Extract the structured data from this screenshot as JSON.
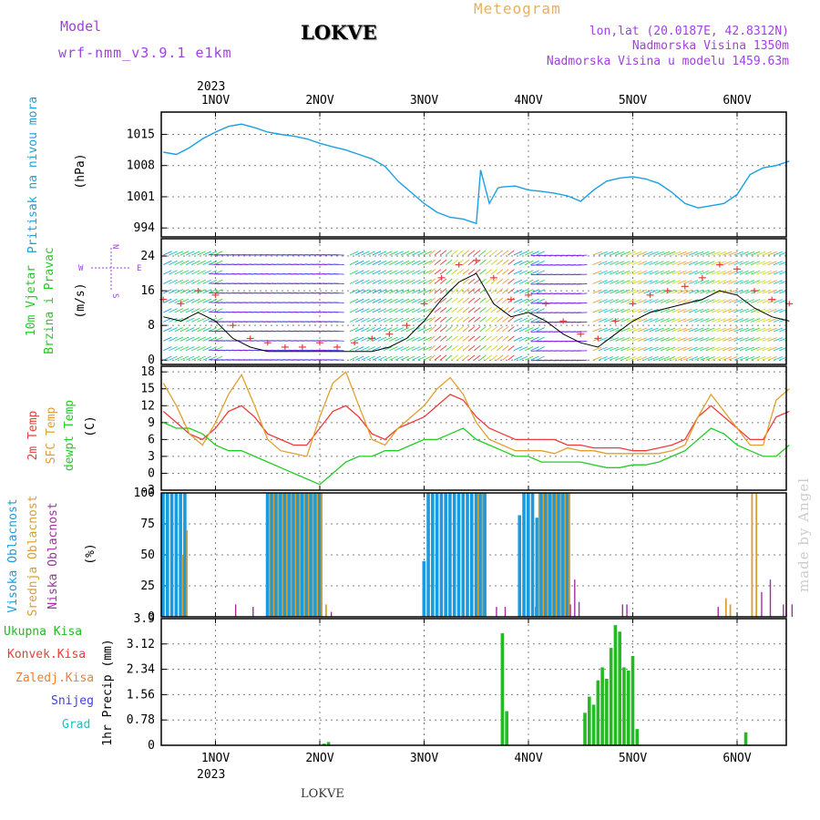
{
  "header": {
    "model_label": "Model",
    "model_name": "wrf-nmm_v3.9.1 e1km",
    "station_title": "LOKVE",
    "meteogram_label": "Meteogram",
    "lonlat": "lon,lat (20.0187E, 42.8312N)",
    "altitude": "Nadmorska Visina 1350m",
    "model_altitude": "Nadmorska Visina u modelu 1459.63m"
  },
  "footer": {
    "station": "LOKVE",
    "credit": "made by Angel"
  },
  "colors": {
    "pressure": "#1aa0e0",
    "temp2m": "#ee3a3a",
    "sfc": "#e0a030",
    "dewpt": "#22cc22",
    "high_cloud": "#1a9be0",
    "mid_cloud": "#d9a030",
    "low_cloud": "#a030a0",
    "total_precip": "#22bb22",
    "conv": "#ee3a3a",
    "frozen": "#f08030",
    "snow": "#4040e0",
    "hail": "#20c0c0",
    "title_purple": "#a040e0",
    "meteogram_orange": "#e6b060"
  },
  "chart_data": [
    {
      "type": "line",
      "name": "pressure",
      "ylabel_lines": [
        "Pritisak na nivou mora",
        "(hPa)"
      ],
      "yticks": [
        994,
        1001,
        1008,
        1015
      ],
      "ylim": [
        992,
        1020
      ],
      "xticks": [
        "1NOV",
        "2NOV",
        "3NOV",
        "4NOV",
        "5NOV",
        "6NOV"
      ],
      "top_year": "2023",
      "x": [
        0,
        3,
        6,
        9,
        12,
        15,
        18,
        21,
        24,
        27,
        30,
        33,
        36,
        39,
        42,
        45,
        48,
        51,
        54,
        57,
        60,
        63,
        66,
        69,
        72,
        73,
        75,
        77,
        78,
        81,
        84,
        87,
        90,
        93,
        96,
        99,
        102,
        105,
        108,
        111,
        114,
        117,
        120,
        123,
        126,
        129,
        132,
        135,
        138,
        141,
        144
      ],
      "series": [
        {
          "values": [
            1011,
            1010.5,
            1012,
            1014,
            1015.5,
            1016.8,
            1017.3,
            1016.5,
            1015.5,
            1015,
            1014.6,
            1014,
            1013,
            1012.2,
            1011.5,
            1010.5,
            1009.5,
            1007.8,
            1004.5,
            1002,
            999.5,
            997.5,
            996.4,
            996,
            995,
            1007,
            999.5,
            1003,
            1003.2,
            1003.4,
            1002.5,
            1002.2,
            1001.8,
            1001.2,
            1000,
            1002.5,
            1004.5,
            1005.2,
            1005.5,
            1005,
            1004,
            1002,
            999.5,
            998.5,
            999,
            999.5,
            1001.5,
            1006,
            1007.5,
            1008,
            1009
          ]
        }
      ]
    },
    {
      "type": "line",
      "name": "wind",
      "ylabel_lines": [
        "10m Vjetar",
        "Brzina i Pravac",
        "(m/s)"
      ],
      "compass": {
        "w": "W",
        "e": "E",
        "n": "N",
        "s": "S"
      },
      "yticks": [
        0,
        8,
        16,
        24
      ],
      "ylim": [
        -1,
        28
      ],
      "x": [
        0,
        4,
        8,
        12,
        16,
        20,
        24,
        28,
        32,
        36,
        40,
        44,
        48,
        52,
        56,
        60,
        64,
        68,
        72,
        76,
        80,
        84,
        88,
        92,
        96,
        100,
        104,
        108,
        112,
        116,
        120,
        124,
        128,
        132,
        136,
        140,
        144
      ],
      "series": [
        {
          "name": "wind",
          "values": [
            10,
            9,
            11,
            9,
            5,
            3,
            2,
            2,
            2,
            2,
            2,
            2,
            2,
            3,
            5,
            9,
            14,
            18,
            20,
            13,
            10,
            11,
            9,
            6,
            4,
            3,
            6,
            9,
            11,
            12,
            13,
            14,
            16,
            15,
            12,
            10,
            9
          ]
        },
        {
          "name": "gust",
          "values": [
            14,
            13,
            16,
            15,
            8,
            5,
            4,
            3,
            3,
            4,
            3,
            4,
            5,
            6,
            8,
            13,
            19,
            22,
            23,
            19,
            14,
            15,
            13,
            9,
            6,
            5,
            9,
            13,
            15,
            16,
            17,
            19,
            22,
            21,
            16,
            14,
            13
          ]
        }
      ]
    },
    {
      "type": "line",
      "name": "temperature",
      "ylabel_lines": [
        "2m Temp",
        "SFC Temp",
        "dewpt Temp",
        "(C)"
      ],
      "yticks": [
        -3,
        0,
        3,
        6,
        9,
        12,
        15,
        18
      ],
      "ylim": [
        -3,
        19
      ],
      "x": [
        0,
        3,
        6,
        9,
        12,
        15,
        18,
        21,
        24,
        27,
        30,
        33,
        36,
        39,
        42,
        45,
        48,
        51,
        54,
        57,
        60,
        63,
        66,
        69,
        72,
        75,
        78,
        81,
        84,
        87,
        90,
        93,
        96,
        99,
        102,
        105,
        108,
        111,
        114,
        117,
        120,
        123,
        126,
        129,
        132,
        135,
        138,
        141,
        144
      ],
      "series": [
        {
          "name": "2m Temp",
          "values": [
            11,
            9,
            7,
            6,
            8,
            11,
            12,
            10,
            7,
            6,
            5,
            5,
            8,
            11,
            12,
            10,
            7,
            6,
            8,
            9,
            10,
            12,
            14,
            13,
            10,
            8,
            7,
            6,
            6,
            6,
            6,
            5,
            5,
            4.5,
            4.5,
            4.5,
            4,
            4,
            4.5,
            5,
            6,
            10,
            12,
            10,
            8,
            6,
            6,
            10,
            11
          ]
        },
        {
          "name": "SFC Temp",
          "values": [
            16,
            12,
            7,
            5,
            9,
            14,
            17.5,
            12,
            6,
            4,
            3.5,
            3,
            10,
            16,
            18,
            12,
            6,
            5,
            8,
            10,
            12,
            15,
            17,
            14,
            9,
            6,
            5,
            4,
            4,
            4,
            3.5,
            4.5,
            4,
            4,
            3.5,
            3.5,
            3.5,
            3.5,
            3.5,
            4,
            5,
            10,
            14,
            11,
            8,
            5,
            5,
            13,
            15
          ]
        },
        {
          "name": "dewpt Temp",
          "values": [
            9,
            8,
            8,
            7,
            5,
            4,
            4,
            3,
            2,
            1,
            0,
            -1,
            -2,
            0,
            2,
            3,
            3,
            4,
            4,
            5,
            6,
            6,
            7,
            8,
            6,
            5,
            4,
            3,
            3,
            2,
            2,
            2,
            2,
            1.5,
            1,
            1,
            1.5,
            1.5,
            2,
            3,
            4,
            6,
            8,
            7,
            5,
            4,
            3,
            3,
            5
          ]
        }
      ]
    },
    {
      "type": "bar",
      "name": "cloud_cover",
      "ylabel_lines": [
        "Visoka Oblacnost",
        "Srednja Oblacnost",
        "Niska Oblacnost",
        "(%)"
      ],
      "yticks": [
        0,
        25,
        50,
        75,
        100
      ],
      "ylim": [
        0,
        100
      ],
      "x": [
        0,
        1,
        2,
        3,
        4,
        5,
        6,
        7,
        8,
        9,
        10,
        11,
        12,
        13,
        14,
        15,
        16,
        17,
        18,
        19,
        20,
        21,
        22,
        23,
        24,
        25,
        26,
        27,
        28,
        29,
        30,
        31,
        32,
        33,
        34,
        35,
        36,
        37,
        38,
        39,
        40,
        41,
        42,
        43,
        44,
        45,
        46,
        47,
        48,
        49,
        50,
        51,
        52,
        53,
        54,
        55,
        56,
        57,
        58,
        59,
        60,
        61,
        62,
        63,
        64,
        65,
        66,
        67,
        68,
        69,
        70,
        71,
        72,
        73,
        74,
        75,
        76,
        77,
        78,
        79,
        80,
        81,
        82,
        83,
        84,
        85,
        86,
        87,
        88,
        89,
        90,
        91,
        92,
        93,
        94,
        95,
        96,
        97,
        98,
        99,
        100,
        101,
        102,
        103,
        104,
        105,
        106,
        107,
        108,
        109,
        110,
        111,
        112,
        113,
        114,
        115,
        116,
        117,
        118,
        119,
        120,
        121,
        122,
        123,
        124,
        125,
        126,
        127,
        128,
        129,
        130,
        131,
        132,
        133,
        134,
        135,
        136,
        137,
        138,
        139,
        140,
        141,
        142,
        143,
        144
      ],
      "series": [
        {
          "name": "Visoka Oblacnost",
          "values": [
            100,
            100,
            100,
            100,
            100,
            100,
            0,
            0,
            0,
            0,
            0,
            0,
            0,
            0,
            0,
            0,
            0,
            0,
            0,
            0,
            0,
            0,
            0,
            0,
            100,
            100,
            100,
            100,
            100,
            100,
            100,
            100,
            100,
            100,
            100,
            100,
            100,
            0,
            0,
            0,
            0,
            0,
            0,
            0,
            0,
            0,
            0,
            0,
            0,
            0,
            0,
            0,
            0,
            0,
            0,
            0,
            0,
            0,
            0,
            0,
            45,
            100,
            100,
            100,
            100,
            100,
            100,
            100,
            100,
            100,
            100,
            100,
            100,
            100,
            100,
            0,
            0,
            0,
            0,
            0,
            0,
            0,
            82,
            100,
            100,
            100,
            80,
            100,
            100,
            100,
            100,
            100,
            100,
            100,
            0,
            0,
            0,
            0,
            0,
            0,
            0,
            0,
            0,
            0,
            0,
            0,
            0,
            0,
            0,
            0,
            0,
            0,
            0,
            0,
            0,
            0,
            0,
            0,
            0,
            0,
            0,
            0,
            0,
            0,
            0,
            0,
            0,
            0,
            0,
            0,
            0,
            0,
            0,
            0,
            0,
            0,
            0,
            0,
            0,
            0,
            0,
            0,
            0,
            0,
            0
          ]
        },
        {
          "name": "Srednja Oblacnost",
          "values": [
            0,
            0,
            0,
            0,
            50,
            70,
            0,
            0,
            0,
            0,
            0,
            0,
            0,
            0,
            0,
            0,
            0,
            0,
            0,
            0,
            0,
            0,
            0,
            0,
            100,
            100,
            100,
            100,
            100,
            100,
            100,
            100,
            100,
            100,
            100,
            100,
            100,
            10,
            0,
            0,
            0,
            0,
            0,
            0,
            0,
            0,
            0,
            0,
            0,
            0,
            0,
            0,
            0,
            0,
            0,
            0,
            0,
            0,
            0,
            0,
            0,
            0,
            0,
            0,
            0,
            0,
            0,
            0,
            0,
            0,
            0,
            0,
            100,
            100,
            0,
            0,
            0,
            0,
            0,
            0,
            0,
            0,
            0,
            0,
            0,
            0,
            100,
            100,
            100,
            100,
            100,
            100,
            100,
            100,
            0,
            0,
            0,
            0,
            0,
            0,
            0,
            0,
            0,
            0,
            0,
            0,
            0,
            0,
            0,
            0,
            0,
            0,
            0,
            0,
            0,
            0,
            0,
            0,
            0,
            0,
            0,
            0,
            0,
            0,
            0,
            0,
            0,
            0,
            0,
            15,
            10,
            0,
            0,
            0,
            0,
            100,
            100,
            0,
            0,
            0,
            0,
            0,
            0,
            0,
            0
          ]
        },
        {
          "name": "Niska Oblacnost",
          "values": [
            0,
            0,
            0,
            0,
            0,
            0,
            0,
            0,
            0,
            0,
            0,
            0,
            0,
            0,
            0,
            0,
            10,
            0,
            0,
            0,
            8,
            0,
            0,
            0,
            0,
            0,
            0,
            0,
            0,
            0,
            0,
            0,
            0,
            0,
            0,
            0,
            0,
            0,
            4,
            0,
            0,
            0,
            0,
            0,
            0,
            0,
            0,
            0,
            0,
            0,
            0,
            0,
            0,
            0,
            0,
            0,
            0,
            0,
            0,
            0,
            0,
            0,
            0,
            0,
            0,
            0,
            0,
            0,
            0,
            0,
            0,
            0,
            0,
            0,
            0,
            0,
            8,
            0,
            8,
            0,
            0,
            0,
            0,
            0,
            0,
            8,
            0,
            0,
            0,
            0,
            0,
            0,
            0,
            10,
            30,
            12,
            0,
            0,
            0,
            0,
            0,
            0,
            0,
            0,
            0,
            10,
            10,
            0,
            0,
            0,
            0,
            0,
            0,
            0,
            0,
            0,
            0,
            0,
            0,
            0,
            0,
            0,
            0,
            0,
            0,
            0,
            0,
            8,
            0,
            0,
            0,
            0,
            0,
            0,
            0,
            0,
            0,
            20,
            0,
            30,
            0,
            0,
            10,
            0,
            10
          ]
        }
      ]
    },
    {
      "type": "bar",
      "name": "precipitation",
      "ylabel_lines": [
        "1hr Precip (mm)"
      ],
      "legend": [
        "Ukupna Kisa",
        "Konvek.Kisa",
        "Zaledj.Kisa",
        "Snijeg",
        "Grad"
      ],
      "yticks": [
        0,
        0.78,
        1.56,
        2.34,
        3.12,
        3.9
      ],
      "ylim": [
        0,
        3.9
      ],
      "bottom_year": "2023",
      "x": [
        37,
        38,
        78,
        79,
        97,
        98,
        99,
        100,
        101,
        102,
        103,
        104,
        105,
        106,
        107,
        108,
        109,
        134
      ],
      "series": [
        {
          "name": "Ukupna Kisa",
          "values": [
            0.05,
            0.1,
            3.45,
            1.05,
            1.0,
            1.5,
            1.25,
            2.0,
            2.4,
            2.05,
            3.0,
            3.7,
            3.5,
            2.4,
            2.3,
            2.75,
            0.5,
            0.4
          ]
        }
      ]
    }
  ]
}
